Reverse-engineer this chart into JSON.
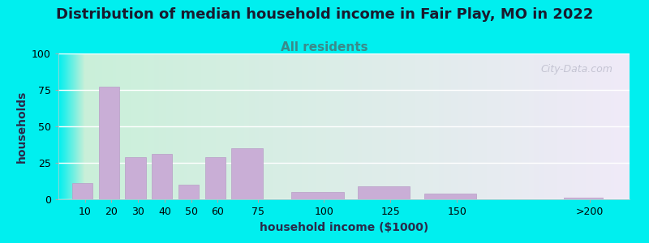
{
  "title": "Distribution of median household income in Fair Play, MO in 2022",
  "subtitle": "All residents",
  "xlabel": "household income ($1000)",
  "ylabel": "households",
  "title_fontsize": 13,
  "subtitle_fontsize": 11,
  "axis_label_fontsize": 10,
  "tick_fontsize": 9,
  "ylim": [
    0,
    100
  ],
  "yticks": [
    0,
    25,
    50,
    75,
    100
  ],
  "bar_color": "#c9aed6",
  "bar_edge_color": "#b89ec6",
  "background_outer": "#00efef",
  "background_inner_left": "#c8f0d8",
  "background_inner_right": "#f0eaf8",
  "title_color": "#1a1a2e",
  "subtitle_color": "#3a8a8a",
  "xlabel_color": "#2a2a4a",
  "ylabel_color": "#2a2a4a",
  "watermark": "City-Data.com",
  "bar_lefts": [
    5,
    15,
    25,
    35,
    45,
    55,
    65,
    87.5,
    112.5,
    137.5,
    190
  ],
  "bar_widths": [
    8,
    8,
    8,
    8,
    8,
    8,
    12,
    20,
    20,
    20,
    15
  ],
  "bar_heights": [
    11,
    77,
    29,
    31,
    10,
    29,
    35,
    5,
    9,
    4,
    1
  ],
  "xtick_positions": [
    10,
    20,
    30,
    40,
    50,
    60,
    75,
    100,
    125,
    150,
    200
  ],
  "xtick_labels": [
    "10",
    "20",
    "30",
    "40",
    "50",
    "60",
    "75",
    "100",
    "125",
    "150",
    ">200"
  ]
}
